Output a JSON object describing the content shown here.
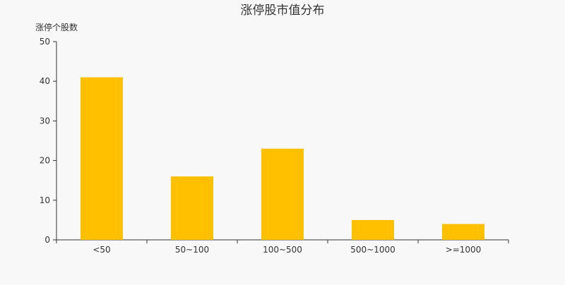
{
  "chart_data": {
    "type": "bar",
    "title": "涨停股市值分布",
    "xlabel": "",
    "ylabel": "涨停个股数",
    "categories": [
      "<50",
      "50~100",
      "100~500",
      "500~1000",
      ">=1000"
    ],
    "values": [
      41,
      16,
      23,
      5,
      4
    ],
    "ylim": [
      0,
      50
    ],
    "yticks": [
      0,
      10,
      20,
      30,
      40,
      50
    ],
    "grid": false,
    "bar_color": "#FFC000",
    "background": "#F8F8F8"
  }
}
